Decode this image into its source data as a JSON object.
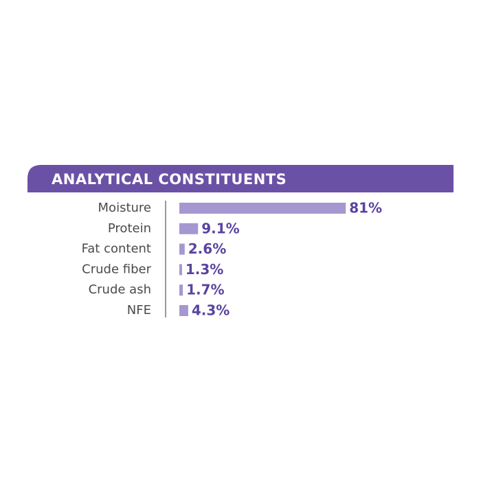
{
  "chart_data": {
    "type": "bar",
    "orientation": "horizontal",
    "title": "ANALYTICAL CONSTITUENTS",
    "categories": [
      "Moisture",
      "Protein",
      "Fat content",
      "Crude fiber",
      "Crude ash",
      "NFE"
    ],
    "values": [
      81,
      9.1,
      2.6,
      1.3,
      1.7,
      4.3
    ],
    "value_labels": [
      "81%",
      "9.1%",
      "2.6%",
      "1.3%",
      "1.7%",
      "4.3%"
    ],
    "color": "#a597d0"
  }
}
